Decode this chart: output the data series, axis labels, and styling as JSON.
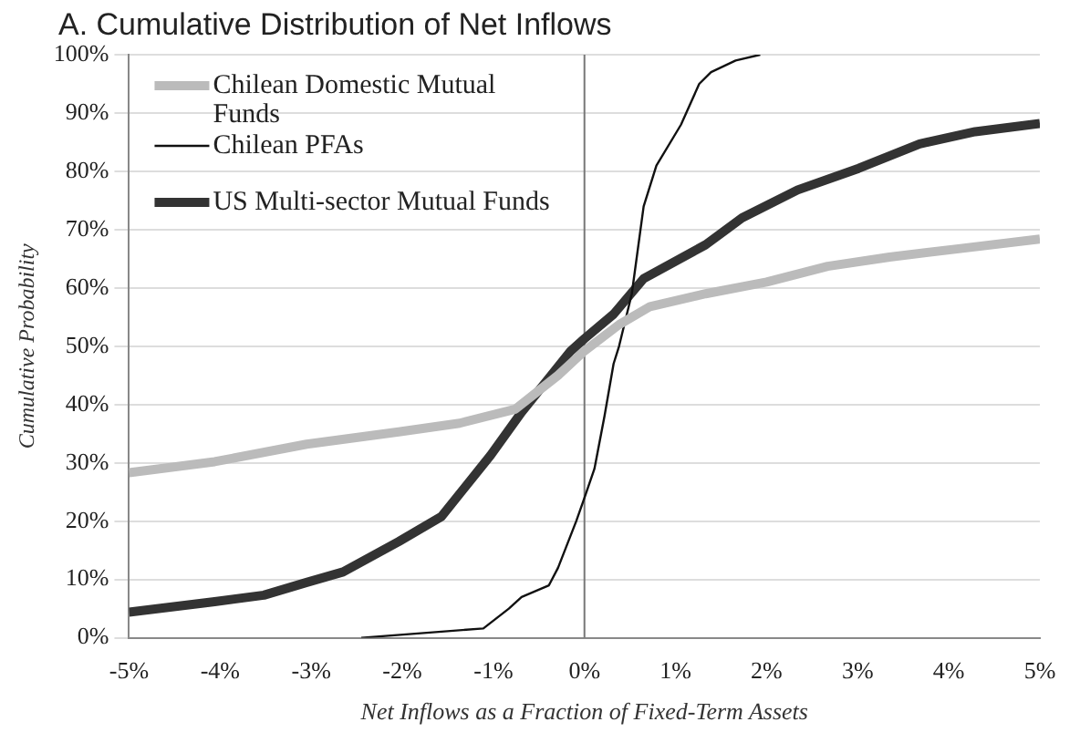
{
  "chart_data": {
    "type": "line",
    "title": "A. Cumulative Distribution of Net Inflows",
    "xlabel": "Net Inflows as a Fraction of Fixed-Term Assets",
    "ylabel": "Cumulative Probability",
    "xlim": [
      -5,
      5
    ],
    "ylim": [
      0,
      100
    ],
    "xticks": [
      {
        "value": -5,
        "label": "-5%"
      },
      {
        "value": -4,
        "label": "-4%"
      },
      {
        "value": -3,
        "label": "-3%"
      },
      {
        "value": -2,
        "label": "-2%"
      },
      {
        "value": -1,
        "label": "-1%"
      },
      {
        "value": 0,
        "label": "0%"
      },
      {
        "value": 1,
        "label": "1%"
      },
      {
        "value": 2,
        "label": "2%"
      },
      {
        "value": 3,
        "label": "3%"
      },
      {
        "value": 4,
        "label": "4%"
      },
      {
        "value": 5,
        "label": "5%"
      }
    ],
    "yticks": [
      {
        "value": 0,
        "label": "0%"
      },
      {
        "value": 10,
        "label": "10%"
      },
      {
        "value": 20,
        "label": "20%"
      },
      {
        "value": 30,
        "label": "30%"
      },
      {
        "value": 40,
        "label": "40%"
      },
      {
        "value": 50,
        "label": "50%"
      },
      {
        "value": 60,
        "label": "60%"
      },
      {
        "value": 70,
        "label": "70%"
      },
      {
        "value": 80,
        "label": "80%"
      },
      {
        "value": 90,
        "label": "90%"
      },
      {
        "value": 100,
        "label": "100%"
      }
    ],
    "grid": "y",
    "legend": "top left",
    "marker": "none",
    "line_style": "solid",
    "ref_lines": [
      {
        "axis": "x",
        "value": 0,
        "color": "#777777"
      }
    ],
    "series": [
      {
        "name": "Chilean Domestic Mutual Funds",
        "color": "#bbbbbb",
        "x": [
          -5,
          -4.06,
          -3.05,
          -2.04,
          -1.37,
          -0.76,
          -0.29,
          0,
          0.38,
          0.72,
          1.33,
          2,
          2.67,
          3.35,
          4.15,
          5
        ],
        "values": [
          28.3,
          30.2,
          33.2,
          35.3,
          36.8,
          39.2,
          45,
          49.2,
          53.7,
          56.8,
          59,
          61,
          63.7,
          65.3,
          66.8,
          68.4
        ]
      },
      {
        "name": "Chilean PFAs",
        "color": "#111111",
        "x": [
          -2.45,
          -1.11,
          -0.83,
          -0.69,
          -0.39,
          -0.29,
          -0.09,
          0,
          0.11,
          0.22,
          0.32,
          0.38,
          0.52,
          0.65,
          0.79,
          1.06,
          1.26,
          1.39,
          1.66,
          1.93
        ],
        "values": [
          0,
          1.6,
          5,
          7,
          9,
          12,
          20,
          24,
          29,
          38,
          47,
          50,
          59,
          74,
          81,
          88,
          95,
          97,
          99,
          100
        ]
      },
      {
        "name": "US Multi-sector Mutual Funds",
        "color": "#333333",
        "x": [
          -5,
          -4.06,
          -3.52,
          -3.05,
          -2.65,
          -2.04,
          -1.57,
          -1.03,
          -0.69,
          -0.15,
          0,
          0.32,
          0.65,
          1.33,
          1.73,
          2.34,
          3.01,
          3.68,
          4.29,
          5
        ],
        "values": [
          4.4,
          6.2,
          7.3,
          9.5,
          11.3,
          16.5,
          20.8,
          31.3,
          38.7,
          49.2,
          51.3,
          55.5,
          61.6,
          67.4,
          72,
          76.8,
          80.5,
          84.7,
          86.8,
          88.2
        ]
      }
    ]
  }
}
